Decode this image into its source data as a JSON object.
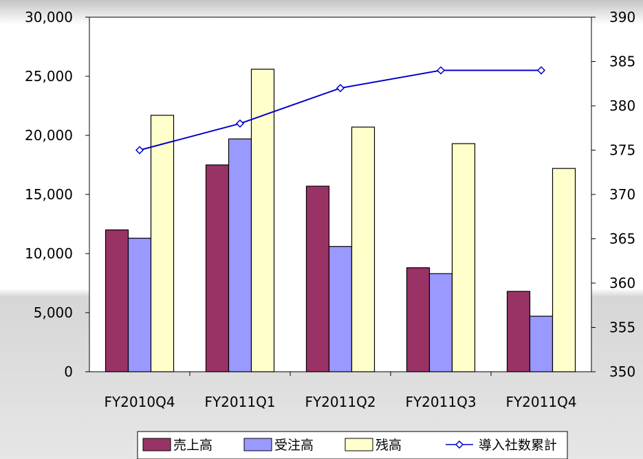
{
  "chart_data": {
    "type": "bar",
    "categories": [
      "FY2010Q4",
      "FY2011Q1",
      "FY2011Q2",
      "FY2011Q3",
      "FY2011Q4"
    ],
    "series": [
      {
        "name": "売上高",
        "type": "bar",
        "axis": "left",
        "color": "#993366",
        "values": [
          12000,
          17500,
          15700,
          8800,
          6800
        ]
      },
      {
        "name": "受注高",
        "type": "bar",
        "axis": "left",
        "color": "#9999ff",
        "values": [
          11300,
          19700,
          10600,
          8300,
          4700
        ]
      },
      {
        "name": "残高",
        "type": "bar",
        "axis": "left",
        "color": "#ffffcc",
        "values": [
          21700,
          25600,
          20700,
          19300,
          17200
        ]
      },
      {
        "name": "導入社数累計",
        "type": "line",
        "axis": "right",
        "color": "#0000cc",
        "marker": "diamond-open",
        "values": [
          375,
          378,
          382,
          384,
          384
        ]
      }
    ],
    "y_left": {
      "min": 0,
      "max": 30000,
      "step": 5000,
      "ticks": [
        "0",
        "5,000",
        "10,000",
        "15,000",
        "20,000",
        "25,000",
        "30,000"
      ]
    },
    "y_right": {
      "min": 350,
      "max": 390,
      "step": 5,
      "ticks": [
        "350",
        "355",
        "360",
        "365",
        "370",
        "375",
        "380",
        "385",
        "390"
      ]
    },
    "grid": false,
    "legend_position": "bottom"
  }
}
